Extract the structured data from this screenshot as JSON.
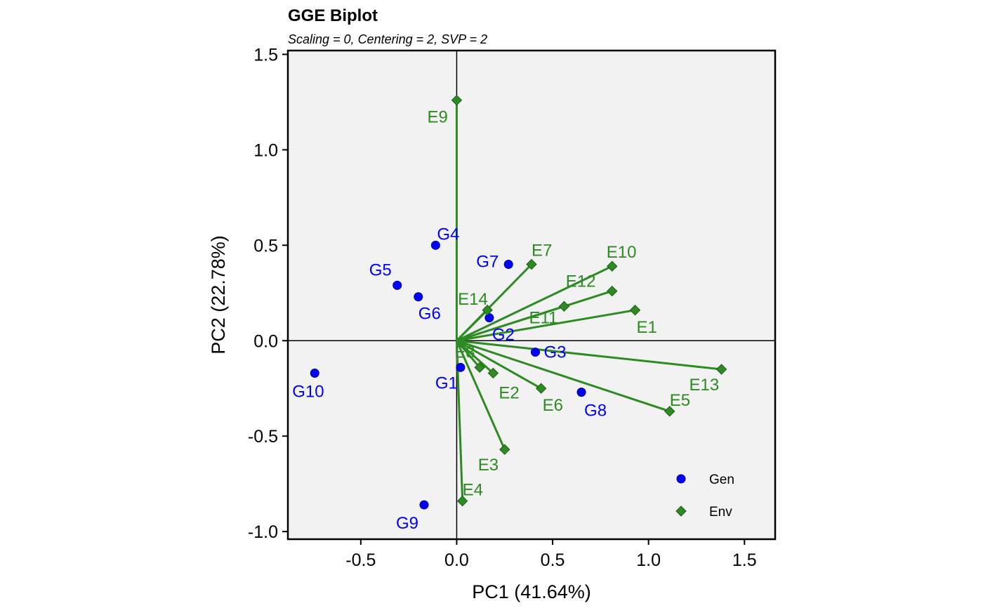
{
  "chart_data": {
    "type": "scatter",
    "title": "GGE Biplot",
    "subtitle": "Scaling = 0, Centering = 2, SVP = 2",
    "xlabel": "PC1 (41.64%)",
    "ylabel": "PC2 (22.78%)",
    "xlim": [
      -0.88,
      1.66
    ],
    "ylim": [
      -1.04,
      1.52
    ],
    "xticks": [
      -0.5,
      0.0,
      0.5,
      1.0,
      1.5
    ],
    "xtick_labels": [
      "-0.5",
      "0.0",
      "0.5",
      "1.0",
      "1.5"
    ],
    "yticks": [
      -1.0,
      -0.5,
      0.0,
      0.5,
      1.0,
      1.5
    ],
    "ytick_labels": [
      "-1.0",
      "-0.5",
      "0.0",
      "0.5",
      "1.0",
      "1.5"
    ],
    "grid": false,
    "legend_position": "bottom-right",
    "series": [
      {
        "name": "Gen",
        "color": "#0000ff",
        "marker": "circle",
        "points": [
          {
            "label": "G1",
            "x": 0.02,
            "y": -0.14
          },
          {
            "label": "G2",
            "x": 0.17,
            "y": 0.12
          },
          {
            "label": "G3",
            "x": 0.41,
            "y": -0.06
          },
          {
            "label": "G4",
            "x": -0.11,
            "y": 0.5
          },
          {
            "label": "G5",
            "x": -0.31,
            "y": 0.29
          },
          {
            "label": "G6",
            "x": -0.2,
            "y": 0.23
          },
          {
            "label": "G7",
            "x": 0.27,
            "y": 0.4
          },
          {
            "label": "G8",
            "x": 0.65,
            "y": -0.27
          },
          {
            "label": "G9",
            "x": -0.17,
            "y": -0.86
          },
          {
            "label": "G10",
            "x": -0.74,
            "y": -0.17
          }
        ]
      },
      {
        "name": "Env",
        "color": "#2e8b23",
        "marker": "diamond",
        "vectors": true,
        "points": [
          {
            "label": "E1",
            "x": 0.93,
            "y": 0.16
          },
          {
            "label": "E2",
            "x": 0.19,
            "y": -0.17
          },
          {
            "label": "E3",
            "x": 0.25,
            "y": -0.57
          },
          {
            "label": "E4",
            "x": 0.03,
            "y": -0.84
          },
          {
            "label": "E5",
            "x": 1.11,
            "y": -0.37
          },
          {
            "label": "E6",
            "x": 0.44,
            "y": -0.25
          },
          {
            "label": "E7",
            "x": 0.39,
            "y": 0.4
          },
          {
            "label": "E8",
            "x": 0.12,
            "y": -0.14
          },
          {
            "label": "E9",
            "x": 0.0,
            "y": 1.26
          },
          {
            "label": "E10",
            "x": 0.81,
            "y": 0.39
          },
          {
            "label": "E11",
            "x": 0.56,
            "y": 0.18
          },
          {
            "label": "E12",
            "x": 0.81,
            "y": 0.26
          },
          {
            "label": "E13",
            "x": 1.38,
            "y": -0.15
          },
          {
            "label": "E14",
            "x": 0.16,
            "y": 0.16
          }
        ]
      }
    ],
    "legend": [
      {
        "label": "Gen",
        "color": "#0000ff",
        "marker": "circle"
      },
      {
        "label": "Env",
        "color": "#2e8b23",
        "marker": "diamond"
      }
    ]
  }
}
